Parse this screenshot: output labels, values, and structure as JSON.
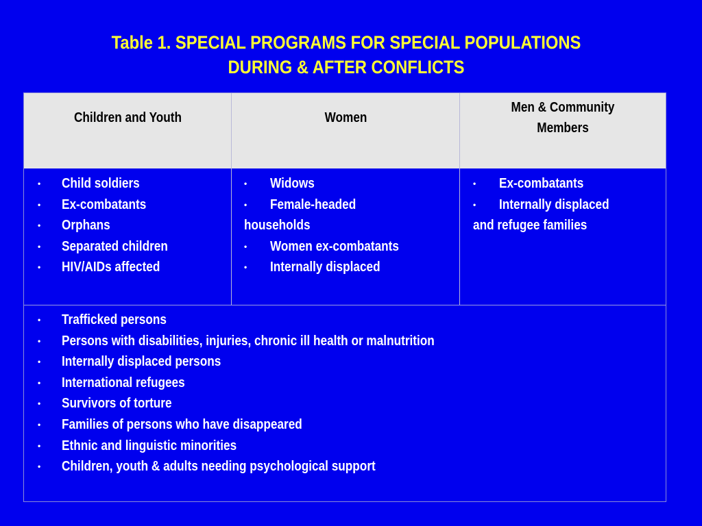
{
  "title": {
    "line1": "Table 1. SPECIAL PROGRAMS FOR SPECIAL POPULATIONS",
    "line2": "DURING & AFTER CONFLICTS"
  },
  "table": {
    "headers": {
      "col1": "Children and Youth",
      "col2": "Women",
      "col3_line1": "Men & Community",
      "col3_line2": "Members"
    },
    "col1_items": [
      "Child soldiers",
      "Ex-combatants",
      "Orphans",
      "Separated children",
      "HIV/AIDs affected"
    ],
    "col2_items": {
      "widows": "Widows",
      "female_headed_a": "Female-headed",
      "female_headed_b": "households",
      "women_ex_combatants": "Women ex-combatants",
      "internally_displaced": "Internally displaced"
    },
    "col3_items": {
      "ex_combatants": "Ex-combatants",
      "idp_a": "Internally displaced",
      "idp_b": "and refugee families"
    },
    "bottom_items": [
      "Trafficked persons",
      "Persons with disabilities, injuries, chronic ill health or malnutrition",
      "Internally displaced persons",
      "International refugees",
      "Survivors of torture",
      "Families of persons who have disappeared",
      "Ethnic and linguistic minorities",
      "Children, youth & adults needing psychological support"
    ],
    "bullet_glyph": "•"
  },
  "colors": {
    "background": "#0000ee",
    "title": "#ffff33",
    "header_fill": "#e6e6e6",
    "body_text": "#ffffff"
  }
}
